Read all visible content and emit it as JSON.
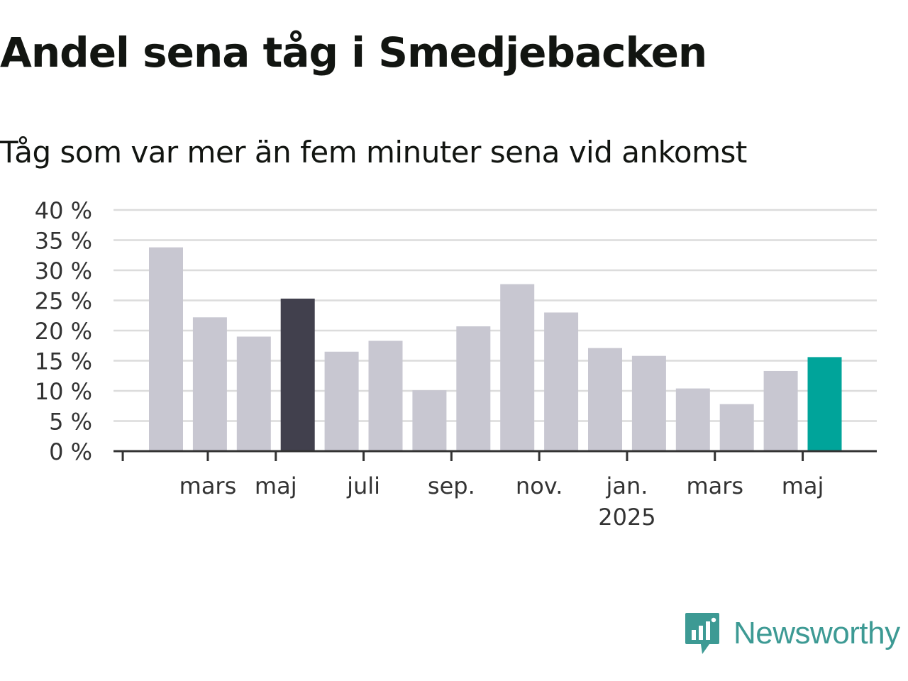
{
  "header": {
    "title": "Andel sena tåg i Smedjebacken",
    "subtitle": "Tåg som var mer än fem minuter sena vid ankomst"
  },
  "chart_data": {
    "type": "bar",
    "title": "Andel sena tåg i Smedjebacken",
    "subtitle": "Tåg som var mer än fem minuter sena vid ankomst",
    "xlabel": "",
    "ylabel": "",
    "ylim": [
      0,
      40
    ],
    "yticks": [
      0,
      5,
      10,
      15,
      20,
      25,
      30,
      35,
      40
    ],
    "ytick_labels": [
      "0 %",
      "5 %",
      "10 %",
      "15 %",
      "20 %",
      "25 %",
      "30 %",
      "35 %",
      "40 %"
    ],
    "x_tick_labels": [
      {
        "label": "mars",
        "after_index": 1
      },
      {
        "label": "maj",
        "after_index": 3
      },
      {
        "label": "juli",
        "after_index": 5
      },
      {
        "label": "sep.",
        "after_index": 7
      },
      {
        "label": "nov.",
        "after_index": 9
      },
      {
        "label": "jan.",
        "sublabel": "2025",
        "after_index": 11
      },
      {
        "label": "mars",
        "after_index": 13
      },
      {
        "label": "maj",
        "after_index": 15
      }
    ],
    "categories": [
      "2024-02",
      "2024-03",
      "2024-04",
      "2024-05",
      "2024-06",
      "2024-07",
      "2024-08",
      "2024-09",
      "2024-10",
      "2024-11",
      "2024-12",
      "2025-01",
      "2025-02",
      "2025-03",
      "2025-04",
      "2025-05"
    ],
    "values": [
      33.8,
      22.2,
      19.0,
      25.3,
      16.5,
      18.3,
      10.1,
      20.7,
      27.7,
      23.0,
      17.1,
      15.8,
      10.4,
      7.8,
      13.3,
      15.6
    ],
    "highlight": {
      "2024-05": "#41404d",
      "2025-05": "#00a49a"
    },
    "bar_color": "#c8c7d1",
    "grid": true,
    "legend": "none"
  },
  "branding": {
    "name": "Newsworthy",
    "icon": "newsworthy-logo-icon",
    "color": "#3d9a94"
  }
}
